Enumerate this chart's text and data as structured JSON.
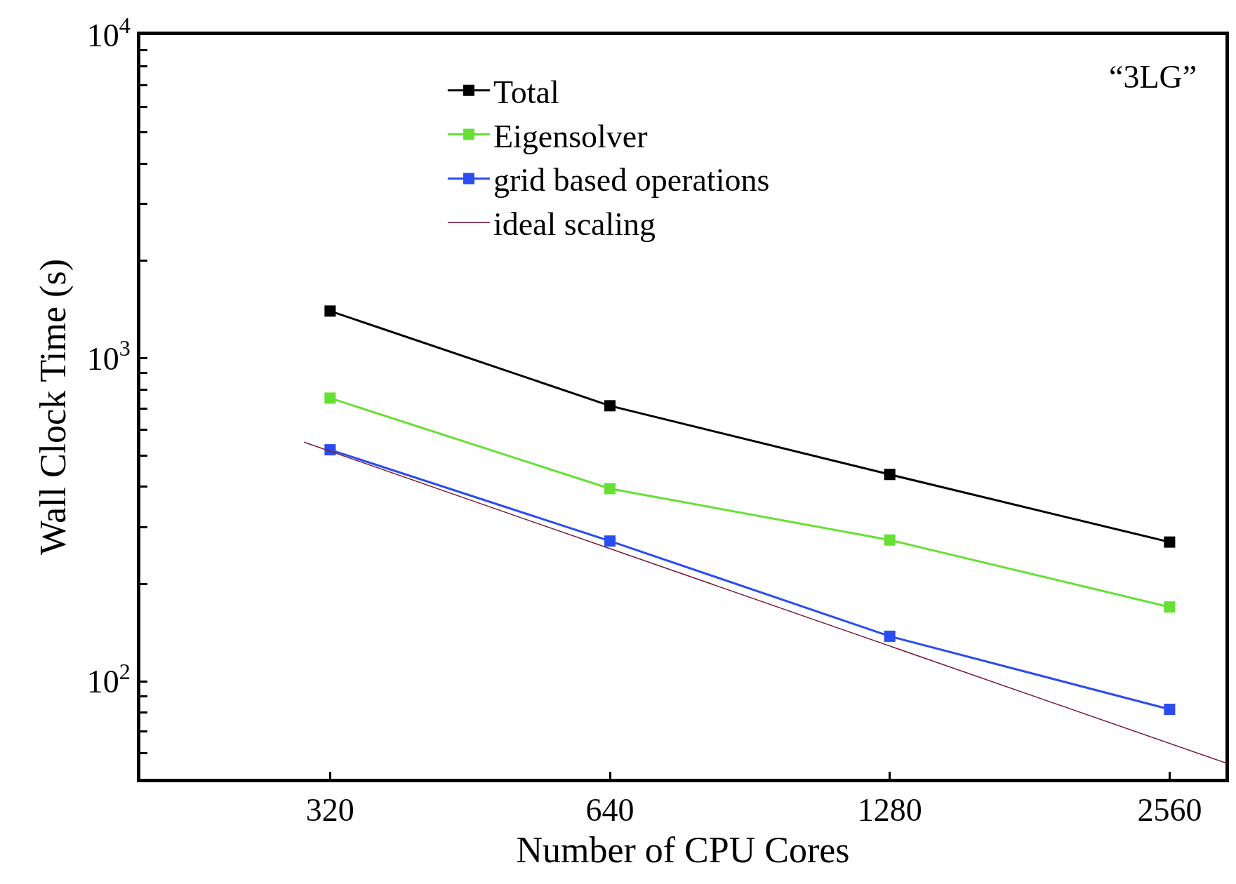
{
  "chart_data": {
    "type": "line",
    "xlabel": "Number of CPU Cores",
    "ylabel": "Wall Clock Time (s)",
    "log": "xy",
    "x": [
      320,
      640,
      1280,
      2560
    ],
    "xlim": [
      200,
      2940
    ],
    "xticks": [
      320,
      640,
      1280,
      2560
    ],
    "ylim": [
      50,
      10000
    ],
    "yticks": [
      {
        "value": 60,
        "label": null
      },
      {
        "value": 70,
        "label": null
      },
      {
        "value": 80,
        "label": null
      },
      {
        "value": 90,
        "label": null
      },
      {
        "value": 100,
        "label": "10$^{2}$"
      },
      {
        "value": 200,
        "label": null
      },
      {
        "value": 300,
        "label": null
      },
      {
        "value": 400,
        "label": null
      },
      {
        "value": 500,
        "label": null
      },
      {
        "value": 600,
        "label": null
      },
      {
        "value": 700,
        "label": null
      },
      {
        "value": 800,
        "label": null
      },
      {
        "value": 900,
        "label": null
      },
      {
        "value": 1000,
        "label": "10$^{3}$"
      },
      {
        "value": 2000,
        "label": null
      },
      {
        "value": 3000,
        "label": null
      },
      {
        "value": 4000,
        "label": null
      },
      {
        "value": 5000,
        "label": null
      },
      {
        "value": 6000,
        "label": null
      },
      {
        "value": 7000,
        "label": null
      },
      {
        "value": 8000,
        "label": null
      },
      {
        "value": 9000,
        "label": null
      },
      {
        "value": 10000,
        "label": "10$^{4}$"
      }
    ],
    "series": [
      {
        "name": "Total",
        "color": "#000000",
        "marker": "square",
        "values": [
          1400,
          713,
          437,
          270
        ]
      },
      {
        "name": "Eigensolver",
        "color": "#66e033",
        "marker": "square",
        "values": [
          753,
          395,
          274,
          170
        ]
      },
      {
        "name": "grid based operations",
        "color": "#2b4cf0",
        "marker": "square",
        "values": [
          521,
          272,
          138,
          82
        ]
      },
      {
        "name": "ideal scaling",
        "color": "#7a1a3a",
        "marker": "none",
        "x": [
          300,
          2940
        ],
        "values": [
          550,
          56
        ]
      }
    ],
    "annotations": [
      "“3LG”"
    ],
    "legend": "top"
  }
}
